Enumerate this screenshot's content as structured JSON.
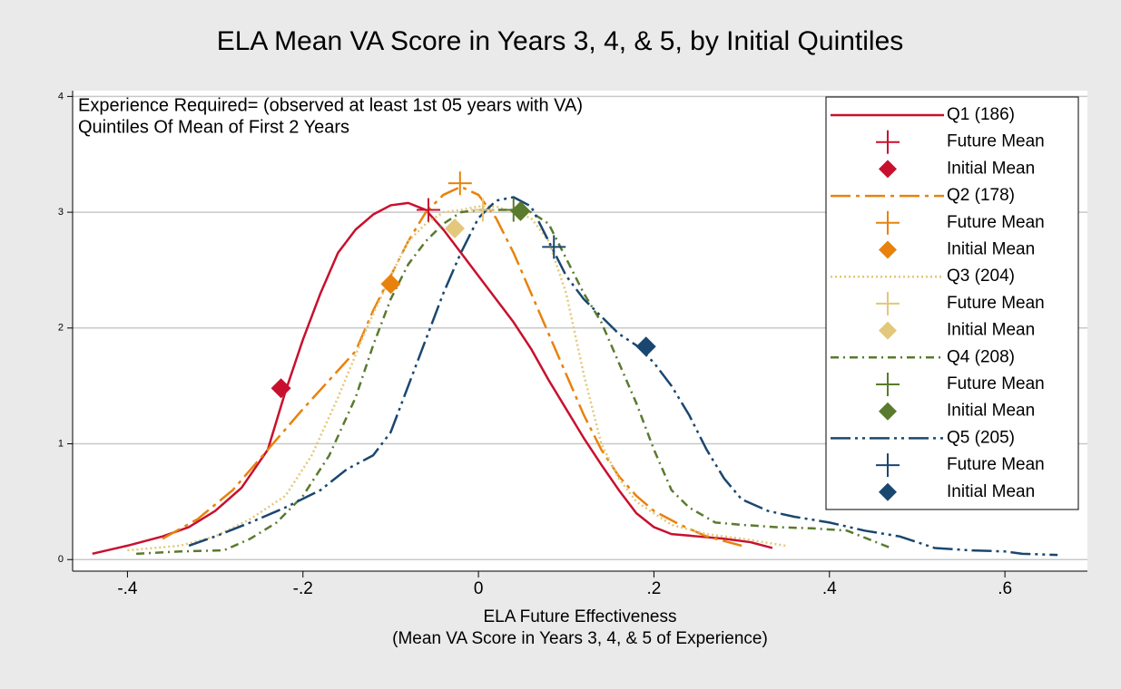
{
  "chart_data": {
    "type": "line",
    "title": "ELA Mean VA Score in Years 3, 4, & 5, by Initial Quintiles",
    "annotations": [
      "Experience Required= (observed at least 1st 05 years with VA)",
      "Quintiles Of Mean of First 2 Years"
    ],
    "xlabel": [
      "ELA Future Effectiveness",
      "(Mean VA Score in Years 3, 4, & 5 of Experience)"
    ],
    "xlim": [
      -0.4625,
      0.694
    ],
    "ylim": [
      -0.1,
      4.05
    ],
    "xticks": [
      {
        "value": -0.4,
        "label": "-.4"
      },
      {
        "value": -0.2,
        "label": "-.2"
      },
      {
        "value": 0,
        "label": "0"
      },
      {
        "value": 0.2,
        "label": ".2"
      },
      {
        "value": 0.4,
        "label": ".4"
      },
      {
        "value": 0.6,
        "label": ".6"
      }
    ],
    "yticks": [
      0,
      1,
      2,
      3,
      4
    ],
    "grid": true,
    "legend": "right",
    "series": [
      {
        "name": "Q1 (186)",
        "color": "#c8102e",
        "dash": "none",
        "x": [
          -0.44,
          -0.4,
          -0.36,
          -0.33,
          -0.3,
          -0.27,
          -0.24,
          -0.22,
          -0.2,
          -0.18,
          -0.16,
          -0.14,
          -0.12,
          -0.1,
          -0.08,
          -0.06,
          -0.04,
          -0.02,
          0.0,
          0.02,
          0.04,
          0.06,
          0.08,
          0.1,
          0.12,
          0.14,
          0.16,
          0.18,
          0.2,
          0.22,
          0.25,
          0.28,
          0.31,
          0.335
        ],
        "values": [
          0.05,
          0.12,
          0.2,
          0.28,
          0.42,
          0.62,
          0.95,
          1.45,
          1.9,
          2.3,
          2.65,
          2.85,
          2.98,
          3.06,
          3.08,
          3.02,
          2.85,
          2.65,
          2.45,
          2.25,
          2.05,
          1.82,
          1.55,
          1.3,
          1.05,
          0.82,
          0.6,
          0.4,
          0.28,
          0.22,
          0.2,
          0.18,
          0.15,
          0.1
        ],
        "future_mean": {
          "label": "Future Mean",
          "x": -0.057,
          "y": 3.02
        },
        "initial_mean": {
          "label": "Initial Mean",
          "x": -0.225,
          "y": 1.48
        }
      },
      {
        "name": "Q2 (178)",
        "color": "#e8820c",
        "dash": "22,6,4,6",
        "x": [
          -0.36,
          -0.32,
          -0.28,
          -0.24,
          -0.2,
          -0.17,
          -0.14,
          -0.12,
          -0.1,
          -0.08,
          -0.06,
          -0.04,
          -0.02,
          0.0,
          0.02,
          0.04,
          0.06,
          0.08,
          0.1,
          0.12,
          0.14,
          0.16,
          0.18,
          0.2,
          0.23,
          0.26,
          0.3
        ],
        "values": [
          0.18,
          0.35,
          0.6,
          0.95,
          1.3,
          1.55,
          1.8,
          2.15,
          2.45,
          2.75,
          3.0,
          3.15,
          3.22,
          3.15,
          2.95,
          2.65,
          2.3,
          1.95,
          1.6,
          1.25,
          0.95,
          0.72,
          0.55,
          0.42,
          0.3,
          0.2,
          0.12
        ],
        "future_mean": {
          "label": "Future Mean",
          "x": -0.021,
          "y": 3.25
        },
        "initial_mean": {
          "label": "Initial Mean",
          "x": -0.1,
          "y": 2.38
        }
      },
      {
        "name": "Q3 (204)",
        "color": "#e3c77a",
        "dash": "2,3",
        "x": [
          -0.4,
          -0.34,
          -0.3,
          -0.26,
          -0.22,
          -0.19,
          -0.16,
          -0.13,
          -0.1,
          -0.08,
          -0.06,
          -0.04,
          -0.02,
          0.0,
          0.02,
          0.04,
          0.06,
          0.08,
          0.1,
          0.12,
          0.14,
          0.16,
          0.18,
          0.22,
          0.26,
          0.3,
          0.35
        ],
        "values": [
          0.08,
          0.12,
          0.2,
          0.35,
          0.55,
          0.9,
          1.4,
          1.95,
          2.45,
          2.75,
          2.9,
          3.0,
          3.02,
          3.05,
          3.05,
          3.0,
          2.95,
          2.75,
          2.3,
          1.6,
          1.0,
          0.7,
          0.5,
          0.3,
          0.22,
          0.18,
          0.12
        ],
        "future_mean": {
          "label": "Future Mean",
          "x": 0.005,
          "y": 3.02
        },
        "initial_mean": {
          "label": "Initial Mean",
          "x": -0.027,
          "y": 2.86
        }
      },
      {
        "name": "Q4 (208)",
        "color": "#5a7a2e",
        "dash": "9,5,2,5",
        "x": [
          -0.39,
          -0.34,
          -0.29,
          -0.26,
          -0.23,
          -0.2,
          -0.17,
          -0.14,
          -0.12,
          -0.1,
          -0.08,
          -0.06,
          -0.04,
          -0.02,
          0.0,
          0.02,
          0.04,
          0.06,
          0.08,
          0.1,
          0.12,
          0.14,
          0.16,
          0.18,
          0.2,
          0.22,
          0.24,
          0.27,
          0.3,
          0.34,
          0.38,
          0.42,
          0.47
        ],
        "values": [
          0.05,
          0.07,
          0.08,
          0.18,
          0.32,
          0.55,
          0.9,
          1.4,
          1.85,
          2.25,
          2.55,
          2.75,
          2.9,
          3.0,
          3.02,
          3.02,
          3.02,
          3.0,
          2.9,
          2.6,
          2.3,
          2.05,
          1.7,
          1.35,
          0.95,
          0.6,
          0.45,
          0.32,
          0.3,
          0.28,
          0.27,
          0.25,
          0.1
        ],
        "future_mean": {
          "label": "Future Mean",
          "x": 0.04,
          "y": 3.02
        },
        "initial_mean": {
          "label": "Initial Mean",
          "x": 0.048,
          "y": 3.01
        }
      },
      {
        "name": "Q5 (205)",
        "color": "#1a476f",
        "dash": "22,5,3,5,3,5",
        "x": [
          -0.33,
          -0.3,
          -0.26,
          -0.22,
          -0.18,
          -0.15,
          -0.12,
          -0.1,
          -0.08,
          -0.06,
          -0.04,
          -0.02,
          0.0,
          0.02,
          0.04,
          0.06,
          0.08,
          0.1,
          0.12,
          0.14,
          0.16,
          0.18,
          0.2,
          0.22,
          0.24,
          0.26,
          0.28,
          0.3,
          0.33,
          0.36,
          0.4,
          0.44,
          0.48,
          0.52,
          0.56,
          0.6,
          0.62,
          0.66
        ],
        "values": [
          0.12,
          0.2,
          0.32,
          0.45,
          0.6,
          0.78,
          0.9,
          1.1,
          1.5,
          1.9,
          2.3,
          2.65,
          2.95,
          3.1,
          3.13,
          3.05,
          2.75,
          2.45,
          2.25,
          2.1,
          1.95,
          1.85,
          1.7,
          1.5,
          1.25,
          0.95,
          0.7,
          0.52,
          0.42,
          0.37,
          0.32,
          0.25,
          0.2,
          0.1,
          0.08,
          0.07,
          0.05,
          0.04
        ],
        "future_mean": {
          "label": "Future Mean",
          "x": 0.086,
          "y": 2.7
        },
        "initial_mean": {
          "label": "Initial Mean",
          "x": 0.191,
          "y": 1.84
        }
      }
    ]
  }
}
